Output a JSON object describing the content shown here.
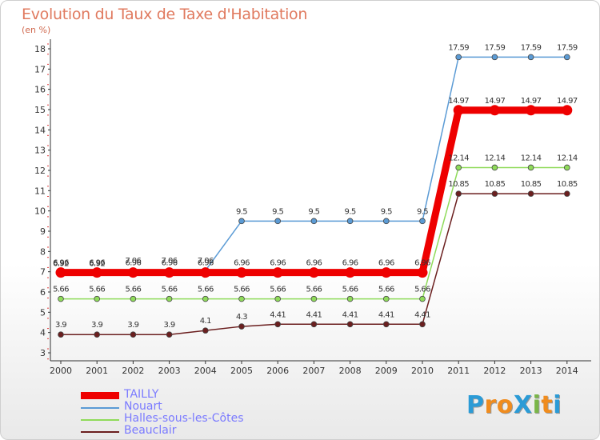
{
  "title": "Evolution du Taux de Taxe d'Habitation",
  "unit": "(en %)",
  "logo": {
    "letters": [
      {
        "char": "P",
        "color": "#2b9bd6"
      },
      {
        "char": "r",
        "color": "#f08c1e"
      },
      {
        "char": "o",
        "color": "#f08c1e"
      },
      {
        "char": "X",
        "color": "#2b9bd6"
      },
      {
        "char": "i",
        "color": "#7ab648"
      },
      {
        "char": "t",
        "color": "#f08c1e"
      },
      {
        "char": "i",
        "color": "#2b9bd6"
      }
    ]
  },
  "chart_data": {
    "type": "line",
    "x": [
      "2000",
      "2001",
      "2002",
      "2003",
      "2004",
      "2005",
      "2006",
      "2007",
      "2008",
      "2009",
      "2010",
      "2011",
      "2012",
      "2013",
      "2014"
    ],
    "ylim": [
      3,
      18
    ],
    "yticks": [
      3,
      4,
      5,
      6,
      7,
      8,
      9,
      10,
      11,
      12,
      13,
      14,
      15,
      16,
      17,
      18
    ],
    "grid": false,
    "legend_position": "bottom-left",
    "series": [
      {
        "name": "TAILLY",
        "color": "#ee0000",
        "label_color": "#7a7aff",
        "values": [
          6.96,
          6.96,
          6.96,
          6.96,
          6.96,
          6.96,
          6.96,
          6.96,
          6.96,
          6.96,
          6.96,
          14.97,
          14.97,
          14.97,
          14.97
        ],
        "labels": [
          "6.96",
          "6.96",
          "6.96",
          "6.96",
          "6.96",
          "6.96",
          "6.96",
          "6.96",
          "6.96",
          "6.96",
          "6.96",
          "14.97",
          "14.97",
          "14.97",
          "14.97"
        ]
      },
      {
        "name": "Nouart",
        "color": "#5b9bd5",
        "label_color": "#7a7aff",
        "values": [
          6.92,
          6.92,
          7.06,
          7.06,
          7.06,
          9.5,
          9.5,
          9.5,
          9.5,
          9.5,
          9.5,
          17.59,
          17.59,
          17.59,
          17.59
        ],
        "labels": [
          "6.92",
          "6.92",
          "7.06",
          "7.06",
          "7.06",
          "9.5",
          "9.5",
          "9.5",
          "9.5",
          "9.5",
          "9.5",
          "17.59",
          "17.59",
          "17.59",
          "17.59"
        ]
      },
      {
        "name": "Halles-sous-les-Côtes",
        "color": "#8fdb5a",
        "label_color": "#7a7aff",
        "values": [
          5.66,
          5.66,
          5.66,
          5.66,
          5.66,
          5.66,
          5.66,
          5.66,
          5.66,
          5.66,
          5.66,
          12.14,
          12.14,
          12.14,
          12.14
        ],
        "labels": [
          "5.66",
          "5.66",
          "5.66",
          "5.66",
          "5.66",
          "5.66",
          "5.66",
          "5.66",
          "5.66",
          "5.66",
          "5.66",
          "12.14",
          "12.14",
          "12.14",
          "12.14"
        ]
      },
      {
        "name": "Beauclair",
        "color": "#6b1f1f",
        "label_color": "#7a7aff",
        "values": [
          3.9,
          3.9,
          3.9,
          3.9,
          4.1,
          4.3,
          4.41,
          4.41,
          4.41,
          4.41,
          4.41,
          10.85,
          10.85,
          10.85,
          10.85
        ],
        "labels": [
          "3.9",
          "3.9",
          "3.9",
          "3.9",
          "4.1",
          "4.3",
          "4.41",
          "4.41",
          "4.41",
          "4.41",
          "4.41",
          "10.85",
          "10.85",
          "10.85",
          "10.85"
        ]
      }
    ]
  }
}
